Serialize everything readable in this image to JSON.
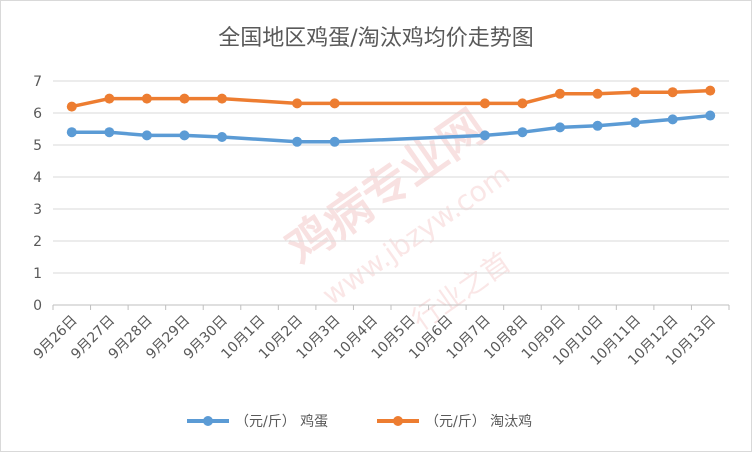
{
  "chart_data": {
    "type": "line",
    "title": "全国地区鸡蛋/淘汰鸡均价走势图",
    "categories": [
      "9月26日",
      "9月27日",
      "9月28日",
      "9月29日",
      "9月30日",
      "10月1日",
      "10月2日",
      "10月3日",
      "10月4日",
      "10月5日",
      "10月6日",
      "10月7日",
      "10月8日",
      "10月9日",
      "10月10日",
      "10月11日",
      "10月12日",
      "10月13日"
    ],
    "series": [
      {
        "name": "（元/斤） 鸡蛋",
        "color": "#5b9bd5",
        "values": [
          5.4,
          5.4,
          5.3,
          5.3,
          5.25,
          null,
          5.1,
          5.1,
          null,
          null,
          null,
          5.3,
          5.4,
          5.55,
          5.6,
          5.7,
          5.8,
          5.92
        ]
      },
      {
        "name": "（元/斤） 淘汰鸡",
        "color": "#ed7d31",
        "values": [
          6.2,
          6.45,
          6.45,
          6.45,
          6.45,
          null,
          6.3,
          6.3,
          null,
          null,
          null,
          6.3,
          6.3,
          6.6,
          6.6,
          6.65,
          6.65,
          6.7
        ]
      }
    ],
    "y_ticks": [
      "0",
      "1",
      "2",
      "3",
      "4",
      "5",
      "6",
      "7"
    ],
    "ylim": [
      0,
      7
    ],
    "grid": true,
    "legend_position": "bottom"
  },
  "watermark": {
    "main": "鸡病专业网",
    "url": "www.jbzyw.com",
    "slogan": "行业之首"
  }
}
